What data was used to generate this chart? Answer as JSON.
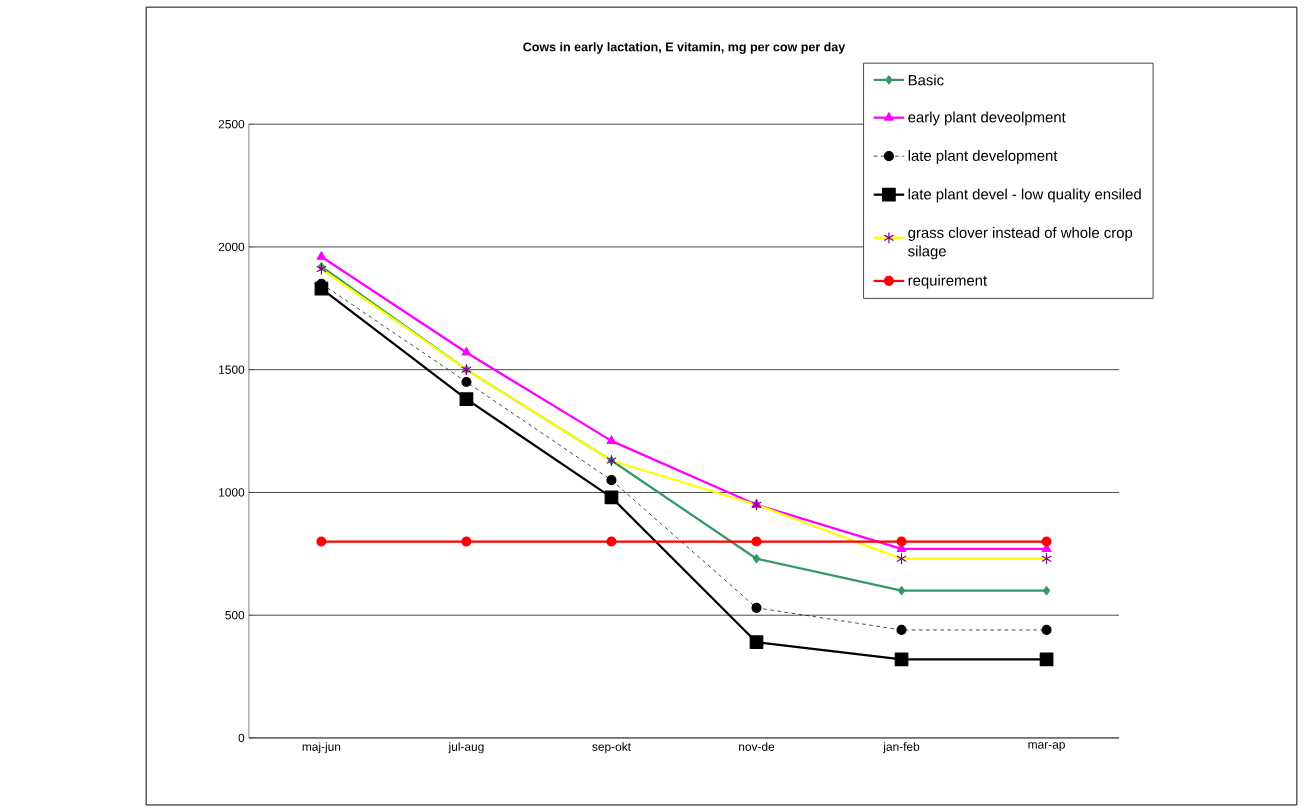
{
  "chart_data": {
    "type": "line",
    "title": "Cows in early lactation, E vitamin, mg per cow per day",
    "categories": [
      "maj-jun",
      "jul-aug",
      "sep-okt",
      "nov-de",
      "jan-feb",
      "mar-ap"
    ],
    "ylim": [
      0,
      2500
    ],
    "yticks": [
      0,
      500,
      1000,
      1500,
      2000,
      2500
    ],
    "grid": "y",
    "legend": "top right",
    "series": [
      {
        "name": "Basic",
        "color": "#339966",
        "marker": "diamond",
        "line_style": "solid",
        "values": [
          1920,
          1500,
          1130,
          730,
          600,
          600
        ]
      },
      {
        "name": "early plant deveolpment",
        "color": "#ff00ff",
        "marker": "triangle",
        "line_style": "solid",
        "values": [
          1960,
          1570,
          1210,
          950,
          770,
          770
        ]
      },
      {
        "name": "late plant development",
        "color": "#000000",
        "marker": "circle",
        "line_style": "dashed",
        "values": [
          1850,
          1450,
          1050,
          530,
          440,
          440
        ]
      },
      {
        "name": "late plant devel - low quality ensiled",
        "color": "#000000",
        "marker": "square",
        "line_style": "solid",
        "values": [
          1830,
          1380,
          980,
          390,
          320,
          320
        ]
      },
      {
        "name": "grass clover instead of whole crop silage",
        "color": "#ffff00",
        "colors": [
          "#800080",
          "#800080",
          "#800080",
          "#800080",
          "#800080",
          "#800080"
        ],
        "marker": "cross",
        "line_style": "solid",
        "values": [
          1910,
          1500,
          1130,
          950,
          730,
          730
        ]
      },
      {
        "name": "requirement",
        "color": "#ff0000",
        "marker": "circle",
        "line_style": "solid",
        "values": [
          800,
          800,
          800,
          800,
          800,
          800
        ]
      }
    ]
  }
}
